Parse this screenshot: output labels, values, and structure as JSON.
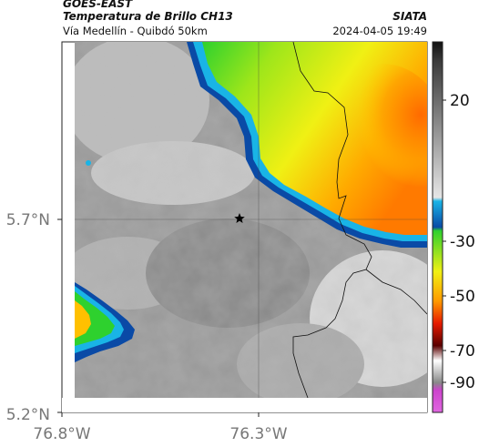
{
  "header": {
    "satellite": "GOES-EAST",
    "product": "Temperatura de Brillo CH13",
    "organization": "SIATA",
    "subtitle": "Vía Medellín - Quibdó 50km",
    "datetime": "2024-04-05 19:49"
  },
  "map": {
    "lat_labels": [
      "5.7°N",
      "5.2°N"
    ],
    "lon_labels": [
      "76.8°W",
      "76.3°W"
    ],
    "marker": "star-icon"
  },
  "colorbar": {
    "tick_labels": [
      "20",
      "-30",
      "-50",
      "-70",
      "-90"
    ],
    "colors": {
      "gray_light": "#e6e6e6",
      "gray_dark": "#7a7a7a",
      "cyan": "#19b4e6",
      "blue": "#0a4aa6",
      "green": "#2ed12e",
      "yellow": "#f0f014",
      "orange": "#ff9900",
      "red": "#e61a00",
      "dark_red": "#5a0000",
      "magenta": "#cc44cc"
    }
  }
}
